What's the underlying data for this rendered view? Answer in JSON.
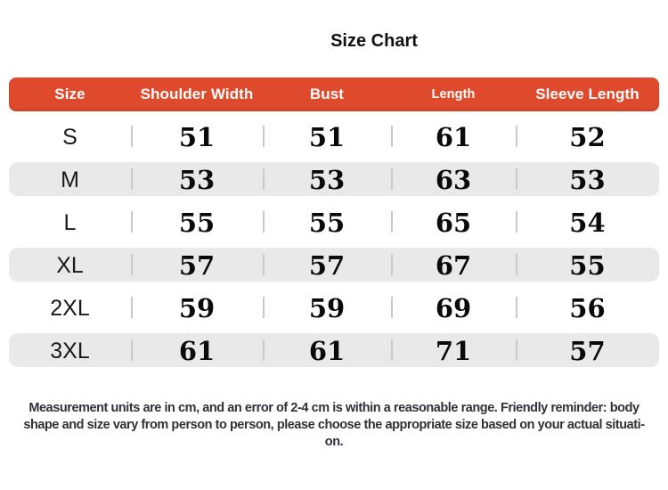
{
  "title": "Size Chart",
  "colors": {
    "header_bg": "#DF4A2C",
    "header_text": "#FFFFFF",
    "row_alt_bg": "#E9E9E9",
    "divider": "#C9C9C9",
    "label_text": "#1A1A1A",
    "number_text": "#0A0A0A",
    "note_text": "#31313A"
  },
  "table": {
    "columns": [
      "Size",
      "Shoulder Width",
      "Bust",
      "Length",
      "Sleeve Length"
    ],
    "rows": [
      {
        "size": "S",
        "values": [
          "51",
          "51",
          "61",
          "52"
        ]
      },
      {
        "size": "M",
        "values": [
          "53",
          "53",
          "63",
          "53"
        ]
      },
      {
        "size": "L",
        "values": [
          "55",
          "55",
          "65",
          "54"
        ]
      },
      {
        "size": "XL",
        "values": [
          "57",
          "57",
          "67",
          "55"
        ]
      },
      {
        "size": "2XL",
        "values": [
          "59",
          "59",
          "69",
          "56"
        ]
      },
      {
        "size": "3XL",
        "values": [
          "61",
          "61",
          "71",
          "57"
        ]
      }
    ]
  },
  "footnote": {
    "lines": [
      "Measurement units are in cm, and an error of 2-4 cm is within a reasonable range. Friendly reminder: body",
      "shape and size vary from person to person, please choose the appropriate size based on your actual situati-",
      "on."
    ]
  },
  "chart_data": {
    "type": "table",
    "title": "Size Chart",
    "columns": [
      "Size",
      "Shoulder Width",
      "Bust",
      "Length",
      "Sleeve Length"
    ],
    "rows": [
      [
        "S",
        51,
        51,
        61,
        52
      ],
      [
        "M",
        53,
        53,
        63,
        53
      ],
      [
        "L",
        55,
        55,
        65,
        54
      ],
      [
        "XL",
        57,
        57,
        67,
        55
      ],
      [
        "2XL",
        59,
        59,
        69,
        56
      ],
      [
        "3XL",
        61,
        61,
        71,
        57
      ]
    ],
    "units": "cm"
  }
}
